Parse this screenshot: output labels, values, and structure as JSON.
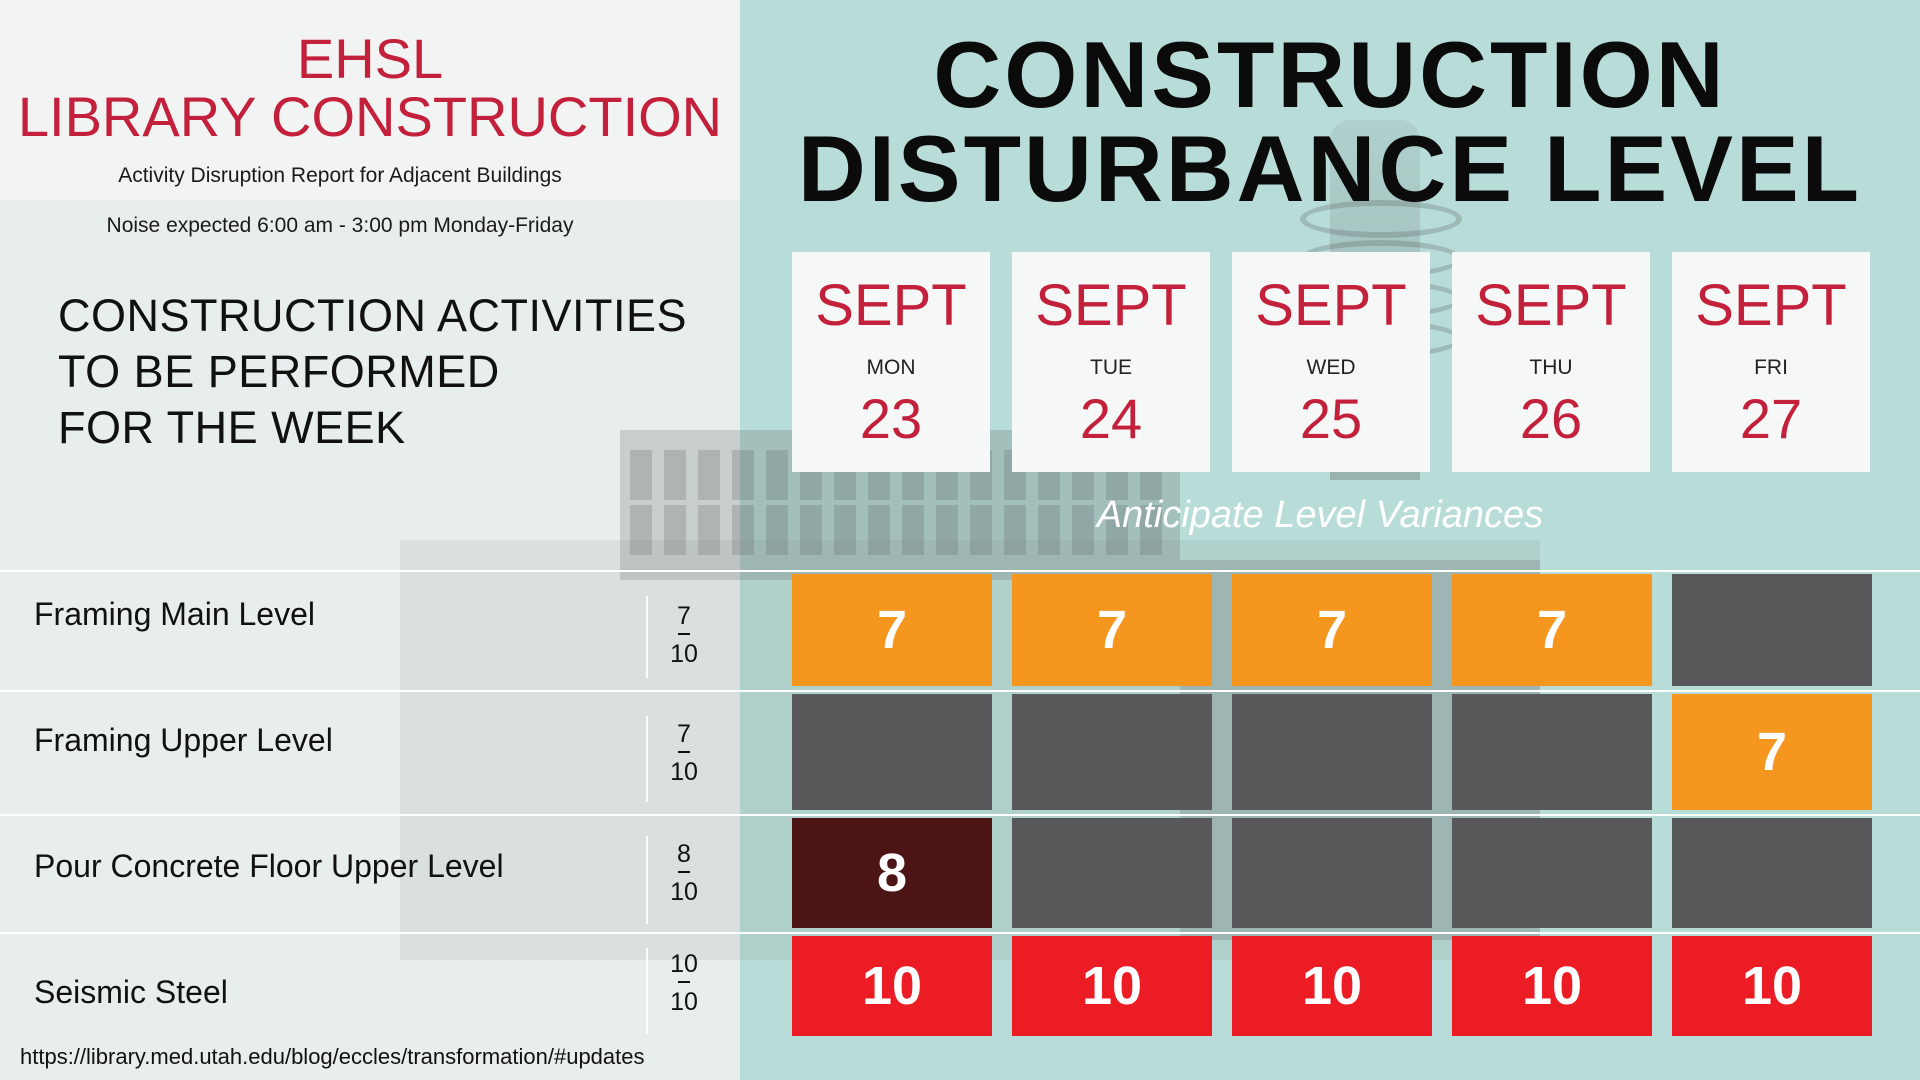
{
  "header": {
    "line1": "EHSL",
    "line2": "LIBRARY CONSTRUCTION",
    "subtitle": "Activity Disruption Report for Adjacent Buildings",
    "noise": "Noise expected 6:00 am - 3:00 pm Monday-Friday"
  },
  "activities_heading": "CONSTRUCTION ACTIVITIES\nTO BE PERFORMED\nFOR THE WEEK",
  "main_title": "CONSTRUCTION\nDISTURBANCE LEVEL",
  "days": [
    {
      "month": "SEPT",
      "dow": "MON",
      "date": "23"
    },
    {
      "month": "SEPT",
      "dow": "TUE",
      "date": "24"
    },
    {
      "month": "SEPT",
      "dow": "WED",
      "date": "25"
    },
    {
      "month": "SEPT",
      "dow": "THU",
      "date": "26"
    },
    {
      "month": "SEPT",
      "dow": "FRI",
      "date": "27"
    }
  ],
  "variance_note": "Anticipate Level Variances",
  "activities": [
    {
      "name": "Framing Main Level",
      "level": "7",
      "max": "10",
      "cells": [
        {
          "value": "7",
          "color": "#f5961f"
        },
        {
          "value": "7",
          "color": "#f5961f"
        },
        {
          "value": "7",
          "color": "#f5961f"
        },
        {
          "value": "7",
          "color": "#f5961f"
        },
        {
          "value": "",
          "color": "#58585a"
        }
      ]
    },
    {
      "name": "Framing Upper Level",
      "level": "7",
      "max": "10",
      "cells": [
        {
          "value": "",
          "color": "#58585a"
        },
        {
          "value": "",
          "color": "#58585a"
        },
        {
          "value": "",
          "color": "#58585a"
        },
        {
          "value": "",
          "color": "#58585a"
        },
        {
          "value": "7",
          "color": "#f5961f"
        }
      ]
    },
    {
      "name": "Pour Concrete Floor Upper Level",
      "level": "8",
      "max": "10",
      "cells": [
        {
          "value": "8",
          "color": "#4d1416"
        },
        {
          "value": "",
          "color": "#58585a"
        },
        {
          "value": "",
          "color": "#58585a"
        },
        {
          "value": "",
          "color": "#58585a"
        },
        {
          "value": "",
          "color": "#58585a"
        }
      ]
    },
    {
      "name": "Seismic Steel",
      "level": "10",
      "max": "10",
      "cells": [
        {
          "value": "10",
          "color": "#ec1c24"
        },
        {
          "value": "10",
          "color": "#ec1c24"
        },
        {
          "value": "10",
          "color": "#ec1c24"
        },
        {
          "value": "10",
          "color": "#ec1c24"
        },
        {
          "value": "10",
          "color": "#ec1c24"
        }
      ]
    }
  ],
  "footer_url": "https://library.med.utah.edu/blog/eccles/transformation/#updates"
}
